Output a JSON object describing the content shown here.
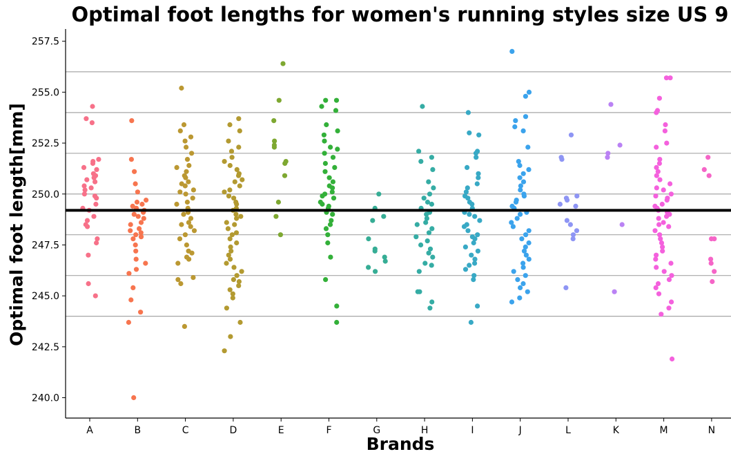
{
  "chart_data": {
    "type": "scatter",
    "title": "Optimal foot lengths for women's running styles size US 9",
    "xlabel": "Brands",
    "ylabel": "Optimal foot length[mm]",
    "categories": [
      "A",
      "B",
      "C",
      "D",
      "E",
      "F",
      "G",
      "H",
      "I",
      "J",
      "L",
      "K",
      "M",
      "N"
    ],
    "ylim": [
      239.0,
      258.1
    ],
    "yticks": [
      "240.0",
      "242.5",
      "245.0",
      "247.5",
      "250.0",
      "252.5",
      "255.0",
      "257.5"
    ],
    "reference_lines": [
      244.0,
      246.0,
      248.0,
      250.0,
      252.0,
      254.0,
      256.0
    ],
    "mean_line": 249.2,
    "grid": "horizontal reference lines only",
    "colors": {
      "A": "#f77189",
      "B": "#f7754f",
      "C": "#bb9832",
      "D": "#b39a31",
      "E": "#7ea831",
      "F": "#33b039",
      "G": "#36ad95",
      "H": "#35aca4",
      "I": "#38a9c5",
      "J": "#3ba3ec",
      "L": "#8e95f4",
      "K": "#ba82f4",
      "M": "#f461dd",
      "N": "#f565c7"
    },
    "series": [
      {
        "category": "A",
        "values": [
          254.3,
          253.7,
          253.5,
          251.7,
          251.6,
          251.5,
          251.3,
          251.2,
          251.0,
          250.9,
          250.8,
          250.7,
          250.6,
          250.4,
          250.3,
          250.2,
          250.0,
          249.9,
          249.8,
          249.5,
          249.3,
          249.2,
          248.9,
          248.7,
          248.5,
          248.4,
          247.8,
          247.6,
          247.0,
          245.6,
          245.0
        ]
      },
      {
        "category": "B",
        "values": [
          253.6,
          251.7,
          251.1,
          250.5,
          250.1,
          249.7,
          249.6,
          249.5,
          249.4,
          249.3,
          249.2,
          249.1,
          249.0,
          248.9,
          248.8,
          248.6,
          248.5,
          248.3,
          248.2,
          248.1,
          248.0,
          247.9,
          247.8,
          247.5,
          247.2,
          246.8,
          246.6,
          246.3,
          246.1,
          245.4,
          244.8,
          244.2,
          243.7,
          240.0
        ]
      },
      {
        "category": "C",
        "values": [
          255.2,
          253.4,
          253.1,
          252.8,
          252.6,
          252.3,
          252.0,
          251.7,
          251.4,
          251.3,
          251.1,
          250.9,
          250.8,
          250.6,
          250.5,
          250.4,
          250.2,
          250.1,
          250.0,
          249.8,
          249.6,
          249.5,
          249.3,
          249.1,
          249.0,
          248.8,
          248.6,
          248.5,
          248.4,
          248.2,
          248.0,
          247.8,
          247.5,
          247.2,
          247.1,
          246.9,
          246.8,
          246.6,
          245.9,
          245.8,
          245.6,
          243.5
        ]
      },
      {
        "category": "D",
        "values": [
          253.7,
          253.4,
          253.1,
          252.6,
          252.3,
          252.1,
          251.8,
          251.6,
          251.4,
          251.2,
          251.0,
          250.9,
          250.7,
          250.6,
          250.4,
          250.2,
          250.1,
          249.9,
          249.8,
          249.6,
          249.5,
          249.3,
          249.2,
          249.0,
          248.9,
          248.8,
          248.6,
          248.5,
          248.3,
          248.1,
          248.0,
          247.8,
          247.6,
          247.4,
          247.2,
          247.0,
          246.8,
          246.6,
          246.4,
          246.2,
          246.0,
          245.8,
          245.7,
          245.5,
          245.3,
          245.1,
          244.9,
          244.4,
          243.7,
          243.0,
          242.3
        ]
      },
      {
        "category": "E",
        "values": [
          256.4,
          254.6,
          253.6,
          252.6,
          252.4,
          252.3,
          251.6,
          251.5,
          250.9,
          249.6,
          248.9,
          248.0
        ]
      },
      {
        "category": "F",
        "values": [
          254.6,
          254.6,
          254.3,
          254.1,
          253.4,
          253.1,
          252.9,
          252.6,
          252.3,
          252.2,
          252.0,
          251.8,
          251.5,
          251.3,
          251.1,
          250.8,
          250.6,
          250.4,
          250.3,
          250.1,
          250.0,
          249.9,
          249.8,
          249.6,
          249.5,
          249.4,
          249.3,
          249.1,
          249.0,
          248.7,
          248.5,
          248.3,
          248.0,
          247.6,
          246.9,
          245.8,
          244.5,
          243.7
        ]
      },
      {
        "category": "G",
        "values": [
          250.0,
          249.3,
          248.9,
          248.7,
          247.8,
          247.3,
          247.2,
          246.9,
          246.7,
          246.4,
          246.2
        ]
      },
      {
        "category": "H",
        "values": [
          254.3,
          252.1,
          251.8,
          251.6,
          251.2,
          250.6,
          250.3,
          250.0,
          249.8,
          249.6,
          249.5,
          249.3,
          249.1,
          249.0,
          248.8,
          248.6,
          248.5,
          248.3,
          248.1,
          247.9,
          247.7,
          247.5,
          247.3,
          247.1,
          246.9,
          246.6,
          246.5,
          246.2,
          245.2,
          245.2,
          244.7,
          244.4
        ]
      },
      {
        "category": "I",
        "values": [
          254.0,
          253.0,
          252.9,
          252.1,
          252.0,
          251.8,
          251.3,
          251.0,
          250.8,
          250.5,
          250.3,
          250.1,
          249.9,
          249.8,
          249.6,
          249.5,
          249.3,
          249.1,
          249.0,
          248.9,
          248.7,
          248.5,
          248.4,
          248.2,
          248.0,
          247.9,
          247.8,
          247.6,
          247.4,
          247.2,
          247.0,
          246.8,
          246.6,
          246.5,
          246.3,
          246.0,
          245.8,
          244.5,
          243.7
        ]
      },
      {
        "category": "J",
        "values": [
          257.0,
          255.0,
          254.8,
          253.8,
          253.6,
          253.3,
          253.1,
          252.3,
          251.6,
          251.4,
          251.2,
          251.0,
          250.8,
          250.6,
          250.4,
          250.2,
          250.0,
          249.9,
          249.7,
          249.6,
          249.4,
          249.3,
          249.1,
          249.0,
          248.8,
          248.6,
          248.4,
          248.2,
          248.0,
          247.8,
          247.6,
          247.4,
          247.2,
          247.0,
          246.8,
          246.6,
          246.4,
          246.2,
          246.0,
          245.8,
          245.6,
          245.4,
          245.2,
          244.9,
          244.7
        ]
      },
      {
        "category": "L",
        "values": [
          252.9,
          251.8,
          251.7,
          249.9,
          249.8,
          249.7,
          249.5,
          249.4,
          248.7,
          248.5,
          248.2,
          248.0,
          247.8,
          245.4
        ]
      },
      {
        "category": "K",
        "values": [
          254.4,
          252.4,
          252.0,
          251.8,
          248.5,
          245.2
        ]
      },
      {
        "category": "M",
        "values": [
          255.7,
          255.7,
          254.7,
          254.1,
          254.0,
          253.4,
          253.1,
          252.5,
          252.3,
          251.7,
          251.5,
          251.3,
          251.1,
          250.9,
          250.7,
          250.5,
          250.3,
          250.2,
          250.0,
          249.9,
          249.8,
          249.7,
          249.5,
          249.4,
          249.3,
          249.2,
          249.1,
          249.0,
          248.9,
          248.8,
          248.6,
          248.5,
          248.4,
          248.2,
          248.0,
          247.8,
          247.6,
          247.4,
          247.2,
          247.0,
          246.8,
          246.6,
          246.4,
          246.2,
          246.0,
          245.8,
          245.6,
          245.4,
          245.1,
          244.7,
          244.4,
          244.1,
          241.9
        ]
      },
      {
        "category": "N",
        "values": [
          251.8,
          251.2,
          250.9,
          247.8,
          247.8,
          246.8,
          246.6,
          246.2,
          245.7
        ]
      }
    ]
  }
}
